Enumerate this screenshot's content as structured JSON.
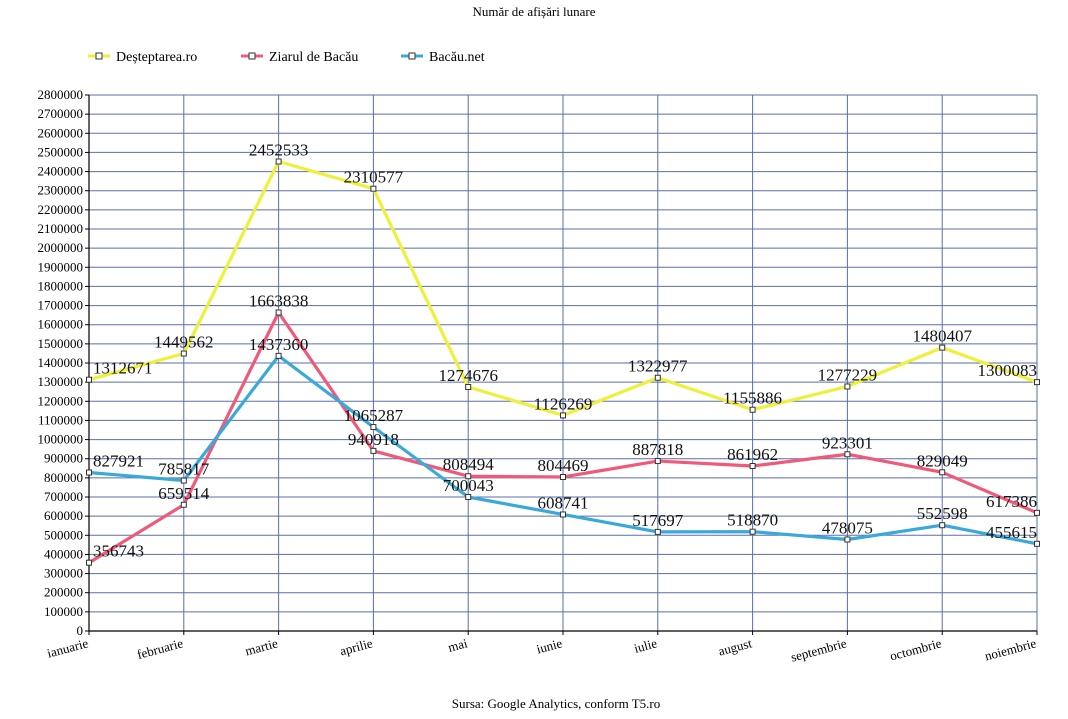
{
  "chart_data": {
    "type": "line",
    "title": "Număr de afișări lunare",
    "source": "Sursa: Google Analytics, conform T5.ro",
    "categories": [
      "ianuarie",
      "februarie",
      "martie",
      "aprilie",
      "mai",
      "iunie",
      "iulie",
      "august",
      "septembrie",
      "octombrie",
      "noiembrie"
    ],
    "ylim": [
      0,
      2800000
    ],
    "ystep": 100000,
    "grid": true,
    "legend_position": "top-left",
    "series": [
      {
        "name": "Deșteptarea.ro",
        "color": "#eef03a",
        "values": [
          1312671,
          1449562,
          2452533,
          2310577,
          1274676,
          1126269,
          1322977,
          1155886,
          1277229,
          1480407,
          1300083
        ]
      },
      {
        "name": "Ziarul de Bacău",
        "color": "#f05a78",
        "values": [
          356743,
          659514,
          1663838,
          940918,
          808494,
          804469,
          887818,
          861962,
          923301,
          829049,
          617386
        ]
      },
      {
        "name": "Bacău.net",
        "color": "#3aa8d8",
        "values": [
          827921,
          785817,
          1437360,
          1065287,
          700043,
          608741,
          517697,
          518870,
          478075,
          552598,
          455615
        ]
      }
    ]
  }
}
